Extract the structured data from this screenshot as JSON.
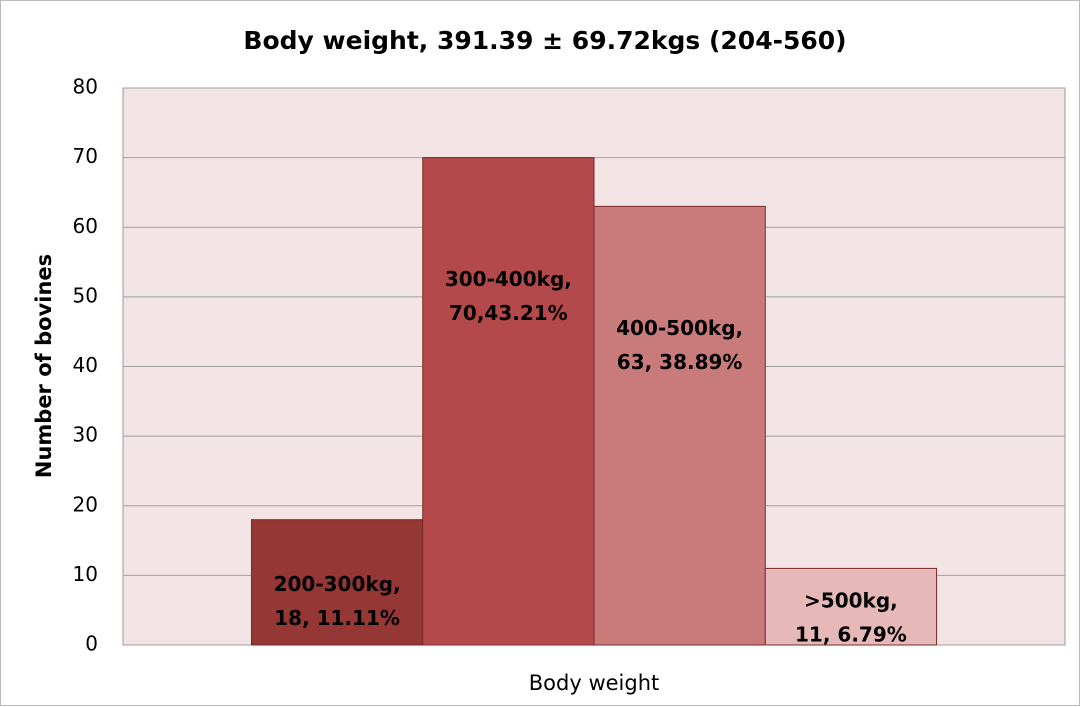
{
  "chart_data": {
    "type": "bar",
    "title": "Body weight, 391.39 ± 69.72kgs (204-560)",
    "x_label": "Body weight",
    "y_label": "Number of bovines",
    "categories": [
      "200-300kg,",
      "300-400kg,",
      "400-500kg,",
      ">500kg,"
    ],
    "values": [
      18,
      70,
      63,
      11
    ],
    "value_labels": [
      "18, 11.11%",
      "70,43.21%",
      "63, 38.89%",
      "11, 6.79%"
    ],
    "colors": [
      "#953735",
      "#b3494a",
      "#c97b7b",
      "#e6b9b8"
    ],
    "ylim": [
      0,
      80
    ],
    "yticks": [
      0,
      10,
      20,
      30,
      40,
      50,
      60,
      70,
      80
    ],
    "grid": true
  }
}
